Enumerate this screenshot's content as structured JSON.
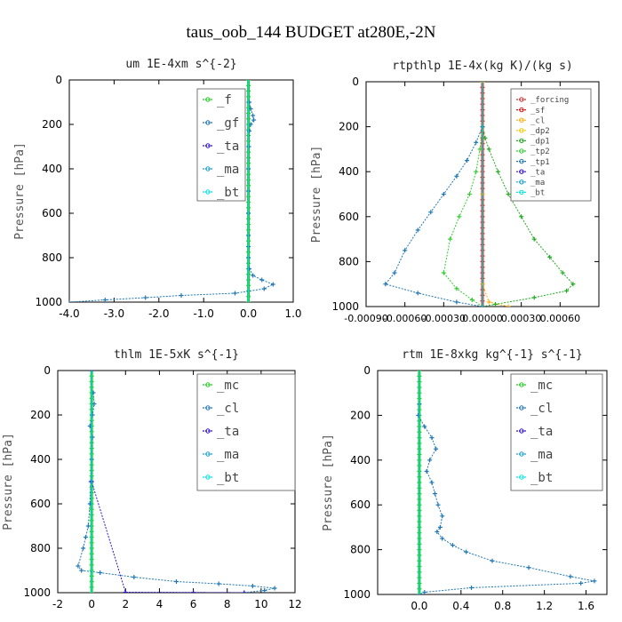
{
  "figure_title": "taus_oob_144  BUDGET at280E,-2N",
  "colors": {
    "f": "#22cc22",
    "gf": "#1f77b4",
    "ta": "#3311cc",
    "ma": "#1aa0d0",
    "bt": "#00e5e5",
    "forcing": "#cc3333",
    "sf": "#dd1111",
    "cl_orange": "#ffaa00",
    "dp2": "#f0cc00",
    "dp1": "#22aa22",
    "tp2": "#33cc33",
    "tp1": "#1f77b4",
    "mc": "#22cc22",
    "cl": "#1f77b4"
  },
  "chart_data": [
    {
      "type": "line",
      "title": "um  1E-4xm s^{-2}",
      "ylabel": "Pressure [hPa]",
      "xlim": [
        -4.0,
        1.0
      ],
      "ylim": [
        1000,
        0
      ],
      "xticks": [
        "-4.0",
        "-3.0",
        "-2.0",
        "-1.0",
        "0.0",
        "1.0"
      ],
      "yticks": [
        "0",
        "200",
        "400",
        "600",
        "800",
        "1000"
      ],
      "legend_position": "top-right",
      "series": [
        {
          "name": "_f",
          "color_key": "f",
          "x": [
            0,
            0,
            0,
            0,
            0,
            0,
            0,
            0,
            0,
            0,
            0
          ],
          "y": [
            0,
            100,
            200,
            300,
            400,
            500,
            600,
            700,
            800,
            900,
            1000
          ]
        },
        {
          "name": "_gf",
          "color_key": "gf",
          "x": [
            0.02,
            0.05,
            0.1,
            0.12,
            0.05,
            0.02,
            0.01,
            0.0,
            0.0,
            0.0,
            0.0,
            0.0,
            0.0,
            0.02,
            0.1,
            0.3,
            0.55,
            0.35,
            -0.3,
            -1.5,
            -2.3,
            -3.2,
            -4.0
          ],
          "y": [
            100,
            130,
            160,
            180,
            200,
            230,
            300,
            400,
            500,
            600,
            700,
            750,
            800,
            850,
            880,
            900,
            920,
            940,
            960,
            970,
            980,
            990,
            1000
          ]
        },
        {
          "name": "_ta",
          "color_key": "ta",
          "x": [
            0,
            0,
            0
          ],
          "y": [
            0,
            500,
            1000
          ]
        },
        {
          "name": "_ma",
          "color_key": "ma",
          "x": [
            0,
            0,
            0
          ],
          "y": [
            0,
            500,
            1000
          ]
        },
        {
          "name": "_bt",
          "color_key": "bt",
          "x": [
            0,
            0,
            0
          ],
          "y": [
            0,
            500,
            1000
          ]
        }
      ]
    },
    {
      "type": "line",
      "title": "rtpthlp  1E-4x(kg K)/(kg s)",
      "ylabel": "Pressure [hPa]",
      "xlim": [
        -0.0009,
        0.0009
      ],
      "ylim": [
        1000,
        0
      ],
      "xticks": [
        "-0.00090",
        "-0.00060",
        "-0.00030",
        "0.00000",
        "0.00030",
        "0.00060"
      ],
      "yticks": [
        "0",
        "200",
        "400",
        "600",
        "800",
        "1000"
      ],
      "legend_position": "top-right",
      "series": [
        {
          "name": "_forcing",
          "color_key": "forcing",
          "x": [
            0,
            0,
            0
          ],
          "y": [
            0,
            500,
            1000
          ]
        },
        {
          "name": "_sf",
          "color_key": "sf",
          "x": [
            0,
            0,
            0
          ],
          "y": [
            0,
            500,
            1000
          ]
        },
        {
          "name": "_cl",
          "color_key": "cl_orange",
          "x": [
            0,
            0,
            0,
            5e-05,
            0.0002
          ],
          "y": [
            0,
            500,
            900,
            980,
            1000
          ]
        },
        {
          "name": "_dp2",
          "color_key": "dp2",
          "x": [
            0,
            0,
            0
          ],
          "y": [
            0,
            500,
            1000
          ]
        },
        {
          "name": "_dp1",
          "color_key": "dp1",
          "x": [
            0,
            2e-05,
            5e-05,
            0.00012,
            0.0002,
            0.0003,
            0.0004,
            0.00052,
            0.00062,
            0.0007,
            0.00065,
            0.0004,
            0.0001,
            0
          ],
          "y": [
            200,
            250,
            300,
            400,
            500,
            600,
            700,
            780,
            850,
            900,
            930,
            960,
            990,
            1000
          ]
        },
        {
          "name": "_tp2",
          "color_key": "tp2",
          "x": [
            0,
            -2e-05,
            -5e-05,
            -0.0001,
            -0.00018,
            -0.00025,
            -0.0003,
            -0.0002,
            -8e-05,
            0
          ],
          "y": [
            200,
            300,
            400,
            500,
            600,
            700,
            850,
            920,
            970,
            1000
          ]
        },
        {
          "name": "_tp1",
          "color_key": "tp1",
          "x": [
            0,
            -5e-05,
            -0.00012,
            -0.0002,
            -0.0003,
            -0.0004,
            -0.0005,
            -0.0006,
            -0.00068,
            -0.00075,
            -0.0005,
            -0.0002,
            0
          ],
          "y": [
            200,
            270,
            350,
            420,
            500,
            580,
            660,
            750,
            850,
            900,
            940,
            980,
            1000
          ]
        },
        {
          "name": "_ta",
          "color_key": "ta",
          "x": [
            0,
            0,
            0
          ],
          "y": [
            0,
            500,
            1000
          ]
        },
        {
          "name": "_ma",
          "color_key": "ma",
          "x": [
            0,
            0,
            0
          ],
          "y": [
            0,
            500,
            1000
          ]
        },
        {
          "name": "_bt",
          "color_key": "bt",
          "x": [
            0,
            0,
            0
          ],
          "y": [
            0,
            500,
            1000
          ]
        }
      ]
    },
    {
      "type": "line",
      "title": "thlm  1E-5xK s^{-1}",
      "ylabel": "Pressure [hPa]",
      "xlim": [
        -2,
        12
      ],
      "ylim": [
        1000,
        0
      ],
      "xticks": [
        "-2",
        "0",
        "2",
        "4",
        "6",
        "8",
        "10",
        "12"
      ],
      "yticks": [
        "0",
        "200",
        "400",
        "600",
        "800",
        "1000"
      ],
      "legend_position": "top-right",
      "series": [
        {
          "name": "_mc",
          "color_key": "mc",
          "x": [
            0,
            0,
            0,
            0,
            0,
            0,
            0,
            0,
            0,
            0,
            0
          ],
          "y": [
            0,
            100,
            200,
            300,
            400,
            500,
            600,
            700,
            800,
            900,
            1000
          ]
        },
        {
          "name": "_cl",
          "color_key": "cl",
          "x": [
            0.1,
            0.15,
            0.05,
            -0.1,
            0.05,
            0.0,
            -0.05,
            -0.1,
            -0.2,
            -0.35,
            -0.5,
            -0.8,
            -0.6,
            0.5,
            2.5,
            5.0,
            7.5,
            9.5,
            10.8,
            10.2,
            9.0
          ],
          "y": [
            100,
            150,
            200,
            250,
            300,
            400,
            500,
            600,
            700,
            750,
            800,
            880,
            900,
            910,
            930,
            950,
            960,
            970,
            980,
            990,
            1000
          ]
        },
        {
          "name": "_ta",
          "color_key": "ta",
          "x": [
            0,
            0,
            2,
            6,
            9
          ],
          "y": [
            0,
            500,
            998,
            999,
            1000
          ]
        },
        {
          "name": "_ma",
          "color_key": "ma",
          "x": [
            0,
            0,
            0
          ],
          "y": [
            0,
            500,
            1000
          ]
        },
        {
          "name": "_bt",
          "color_key": "bt",
          "x": [
            0,
            0,
            0
          ],
          "y": [
            0,
            500,
            1000
          ]
        }
      ]
    },
    {
      "type": "line",
      "title": "rtm  1E-8xkg kg^{-1} s^{-1}",
      "ylabel": "Pressure [hPa]",
      "xlim": [
        -0.4,
        1.8
      ],
      "ylim": [
        1000,
        0
      ],
      "xticks": [
        "0.0",
        "0.4",
        "0.8",
        "1.2",
        "1.6"
      ],
      "yticks": [
        "0",
        "200",
        "400",
        "600",
        "800",
        "1000"
      ],
      "legend_position": "top-right",
      "series": [
        {
          "name": "_mc",
          "color_key": "mc",
          "x": [
            0,
            0,
            0,
            0,
            0,
            0,
            0,
            0,
            0,
            0,
            0
          ],
          "y": [
            0,
            100,
            200,
            300,
            400,
            500,
            600,
            700,
            800,
            900,
            1000
          ]
        },
        {
          "name": "_cl",
          "color_key": "cl",
          "x": [
            0.0,
            -0.01,
            0.05,
            0.12,
            0.16,
            0.1,
            0.07,
            0.12,
            0.15,
            0.18,
            0.22,
            0.2,
            0.17,
            0.22,
            0.32,
            0.45,
            0.7,
            1.05,
            1.45,
            1.68,
            1.55,
            0.5,
            0.05,
            0.0
          ],
          "y": [
            150,
            200,
            250,
            300,
            350,
            400,
            450,
            500,
            550,
            600,
            650,
            700,
            720,
            750,
            780,
            810,
            850,
            880,
            920,
            940,
            950,
            970,
            990,
            1000
          ]
        },
        {
          "name": "_ta",
          "color_key": "ta",
          "x": [
            0,
            0,
            0
          ],
          "y": [
            0,
            500,
            1000
          ]
        },
        {
          "name": "_ma",
          "color_key": "ma",
          "x": [
            0,
            0,
            0
          ],
          "y": [
            0,
            500,
            1000
          ]
        },
        {
          "name": "_bt",
          "color_key": "bt",
          "x": [
            0,
            0,
            0
          ],
          "y": [
            0,
            500,
            1000
          ]
        }
      ]
    }
  ]
}
